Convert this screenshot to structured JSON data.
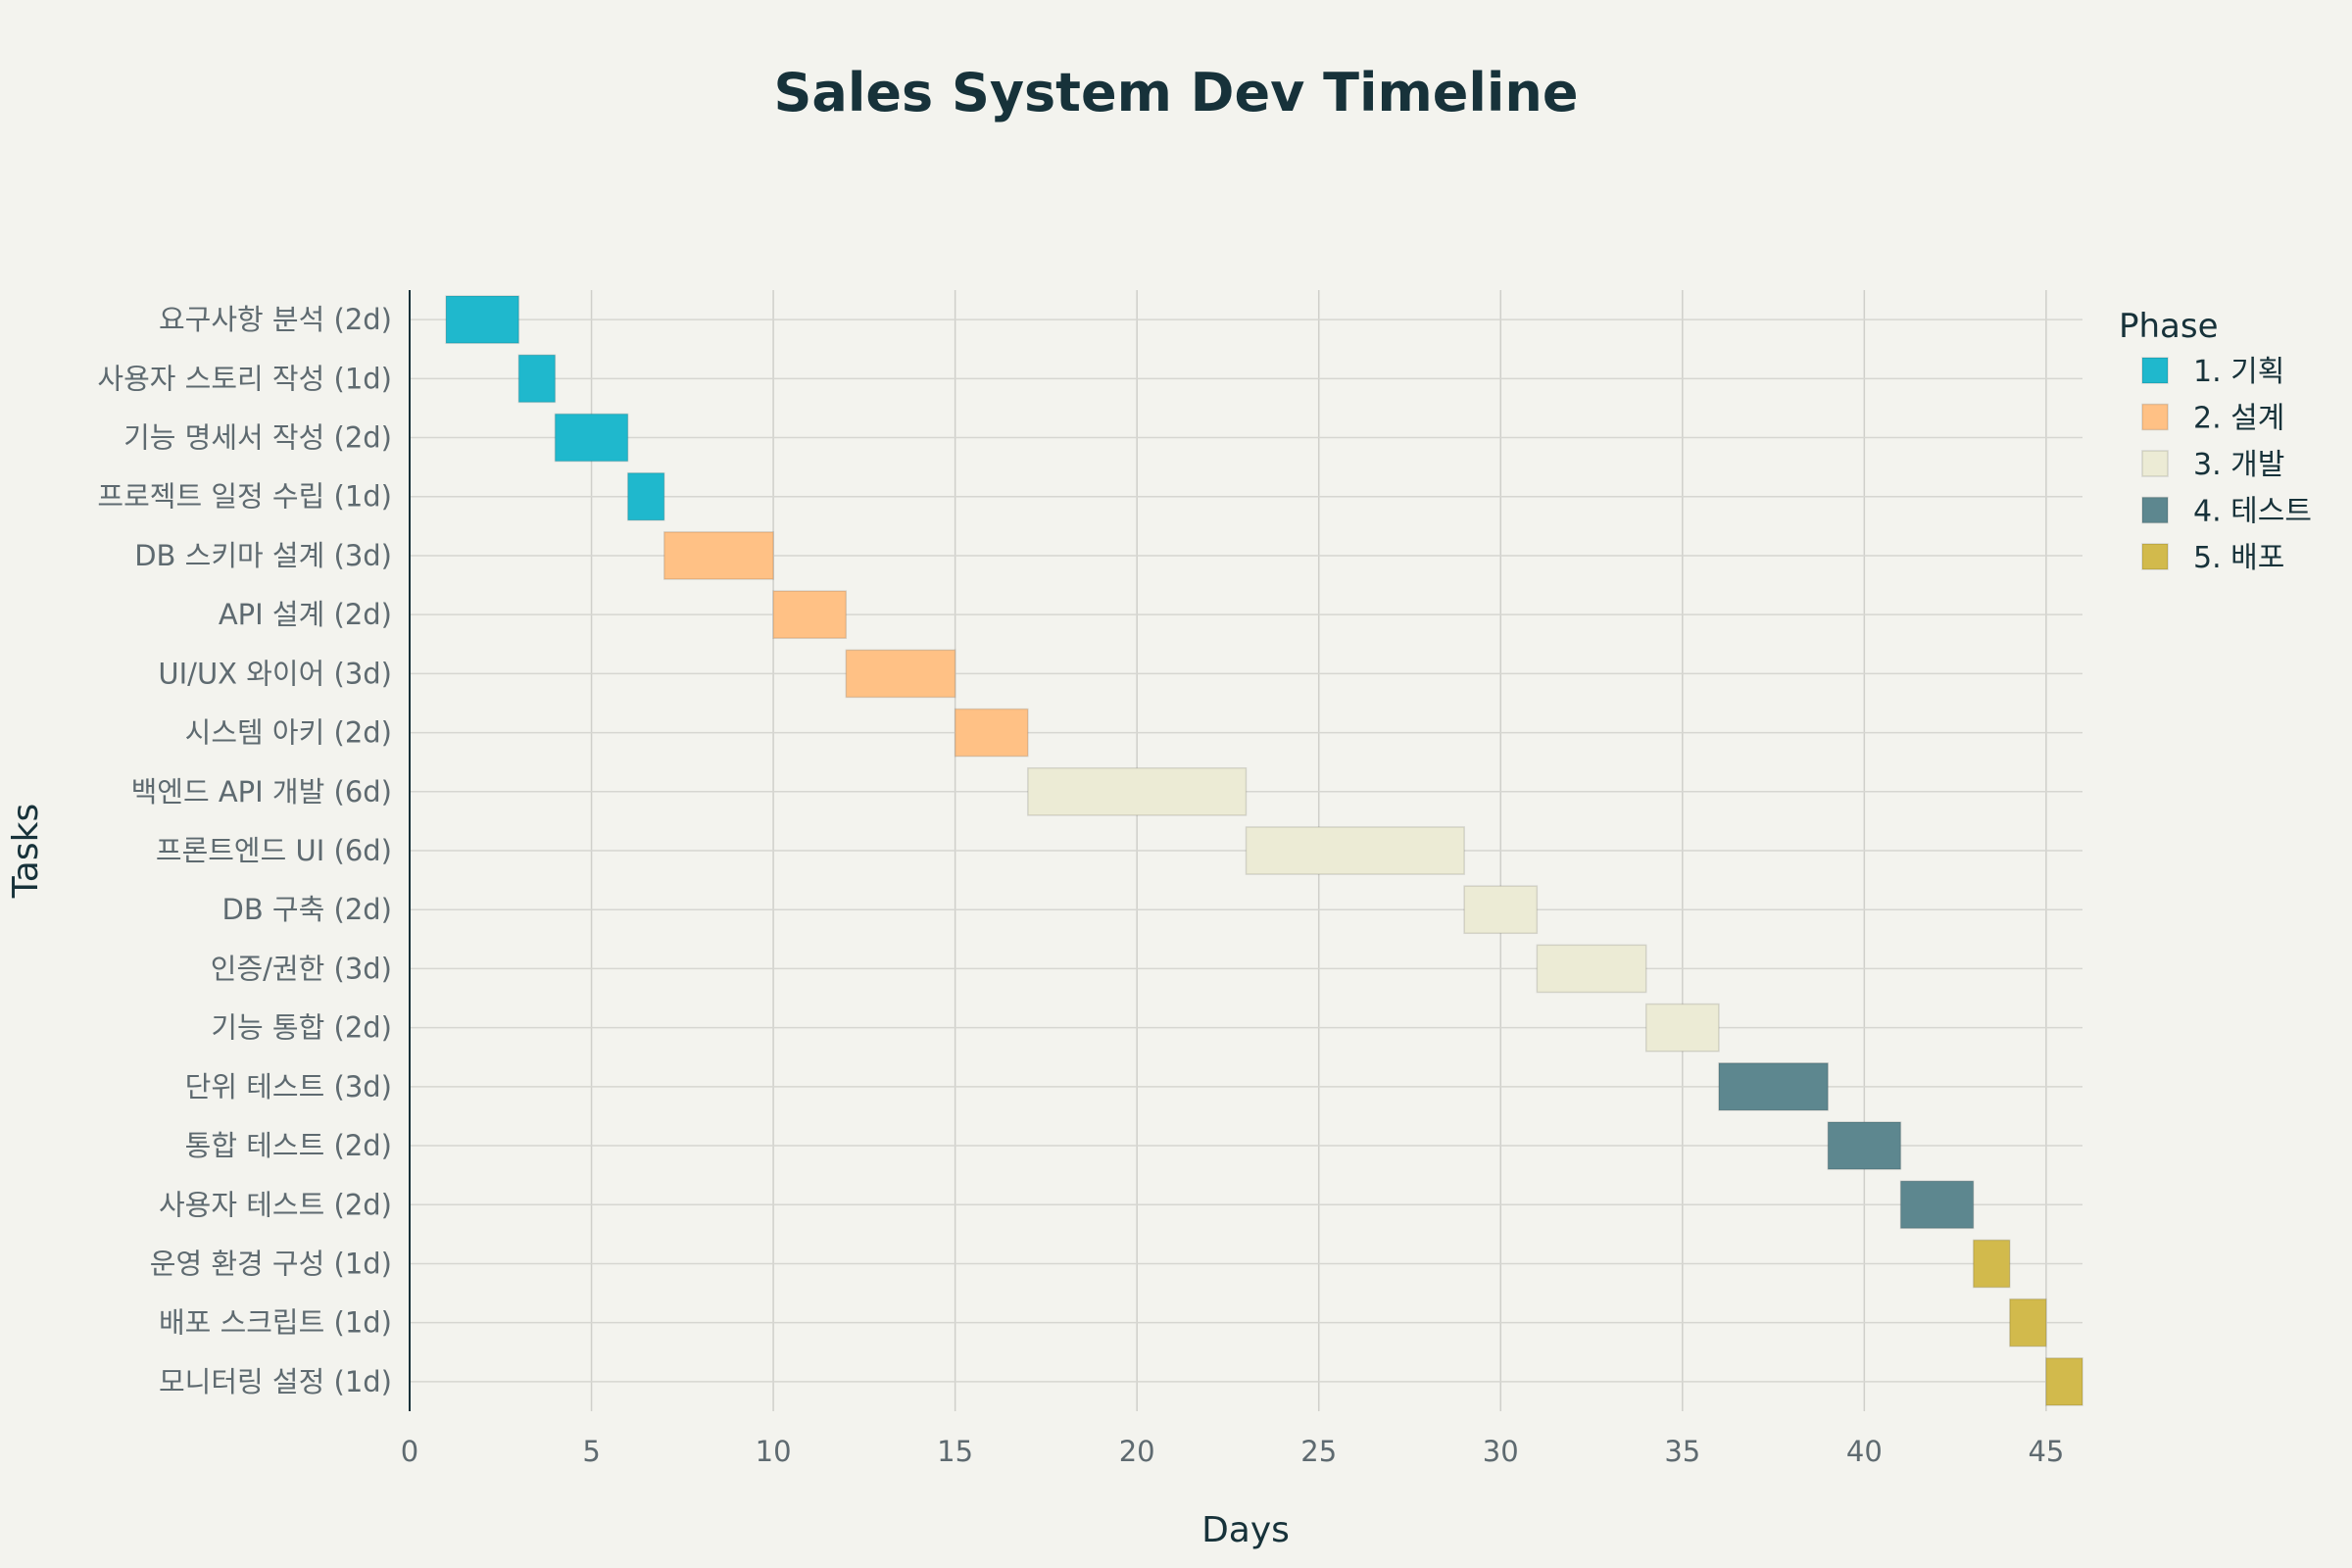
{
  "chart_data": {
    "type": "bar",
    "orientation": "horizontal",
    "subtype": "gantt",
    "title": "Sales System Dev Timeline",
    "xlabel": "Days",
    "ylabel": "Tasks",
    "xlim": [
      0,
      46
    ],
    "x_ticks": [
      0,
      5,
      10,
      15,
      20,
      25,
      30,
      35,
      40,
      45
    ],
    "grid": true,
    "legend": {
      "title": "Phase",
      "placement": "right",
      "entries": [
        {
          "name": "1. 기획",
          "color": "#1fb8cd"
        },
        {
          "name": "2. 설계",
          "color": "#ffc185"
        },
        {
          "name": "3. 개발",
          "color": "#ecebd5"
        },
        {
          "name": "4. 테스트",
          "color": "#5d878f"
        },
        {
          "name": "5. 배포",
          "color": "#d2ba4c"
        }
      ]
    },
    "tasks": [
      {
        "label": "요구사항 분석 (2d)",
        "start": 1,
        "end": 3,
        "phase": "1. 기획"
      },
      {
        "label": "사용자 스토리 작성 (1d)",
        "start": 3,
        "end": 4,
        "phase": "1. 기획"
      },
      {
        "label": "기능 명세서 작성 (2d)",
        "start": 4,
        "end": 6,
        "phase": "1. 기획"
      },
      {
        "label": "프로젝트 일정 수립 (1d)",
        "start": 6,
        "end": 7,
        "phase": "1. 기획"
      },
      {
        "label": "DB 스키마 설계 (3d)",
        "start": 7,
        "end": 10,
        "phase": "2. 설계"
      },
      {
        "label": "API 설계 (2d)",
        "start": 10,
        "end": 12,
        "phase": "2. 설계"
      },
      {
        "label": "UI/UX 와이어 (3d)",
        "start": 12,
        "end": 15,
        "phase": "2. 설계"
      },
      {
        "label": "시스템 아키 (2d)",
        "start": 15,
        "end": 17,
        "phase": "2. 설계"
      },
      {
        "label": "백엔드 API 개발 (6d)",
        "start": 17,
        "end": 23,
        "phase": "3. 개발"
      },
      {
        "label": "프론트엔드 UI (6d)",
        "start": 23,
        "end": 29,
        "phase": "3. 개발"
      },
      {
        "label": "DB 구축 (2d)",
        "start": 29,
        "end": 31,
        "phase": "3. 개발"
      },
      {
        "label": "인증/권한 (3d)",
        "start": 31,
        "end": 34,
        "phase": "3. 개발"
      },
      {
        "label": "기능 통합 (2d)",
        "start": 34,
        "end": 36,
        "phase": "3. 개발"
      },
      {
        "label": "단위 테스트 (3d)",
        "start": 36,
        "end": 39,
        "phase": "4. 테스트"
      },
      {
        "label": "통합 테스트 (2d)",
        "start": 39,
        "end": 41,
        "phase": "4. 테스트"
      },
      {
        "label": "사용자 테스트 (2d)",
        "start": 41,
        "end": 43,
        "phase": "4. 테스트"
      },
      {
        "label": "운영 환경 구성 (1d)",
        "start": 43,
        "end": 44,
        "phase": "5. 배포"
      },
      {
        "label": "배포 스크립트 (1d)",
        "start": 44,
        "end": 45,
        "phase": "5. 배포"
      },
      {
        "label": "모니터링 설정 (1d)",
        "start": 45,
        "end": 46,
        "phase": "5. 배포"
      }
    ]
  }
}
